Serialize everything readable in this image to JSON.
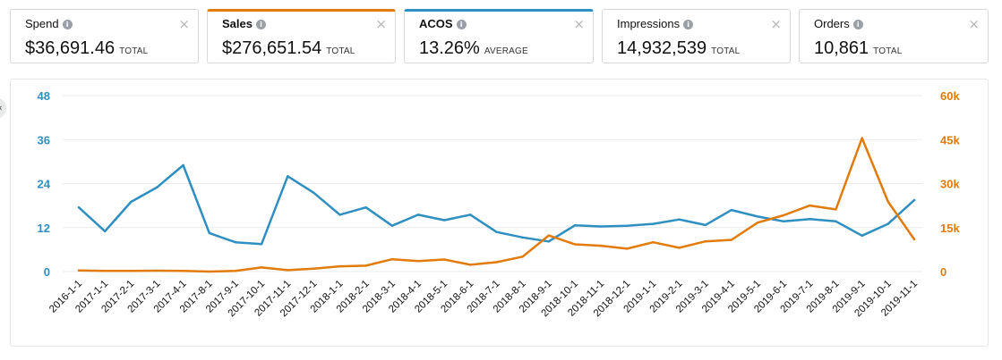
{
  "metrics": [
    {
      "label": "Spend",
      "value": "$36,691.46",
      "agg": "TOTAL",
      "selected": false
    },
    {
      "label": "Sales",
      "value": "$276,651.54",
      "agg": "TOTAL",
      "selected": true
    },
    {
      "label": "ACOS",
      "value": "13.26%",
      "agg": "AVERAGE",
      "selected": true
    },
    {
      "label": "Impressions",
      "value": "14,932,539",
      "agg": "TOTAL",
      "selected": false
    },
    {
      "label": "Orders",
      "value": "10,861",
      "agg": "TOTAL",
      "selected": false
    }
  ],
  "icons": {
    "info": "info-icon",
    "close": "close-icon",
    "collapse": "chevron-left-icon"
  },
  "colors": {
    "acos": "#2e8fc0",
    "sales": "#e07b0c",
    "grid": "#e9ecec",
    "border": "#d5d9d9"
  },
  "chart_data": {
    "type": "line",
    "x": [
      "2016-1-1",
      "2017-1-1",
      "2017-2-1",
      "2017-3-1",
      "2017-4-1",
      "2017-8-1",
      "2017-9-1",
      "2017-10-1",
      "2017-11-1",
      "2017-12-1",
      "2018-1-1",
      "2018-2-1",
      "2018-3-1",
      "2018-4-1",
      "2018-5-1",
      "2018-6-1",
      "2018-7-1",
      "2018-8-1",
      "2018-9-1",
      "2018-10-1",
      "2018-11-1",
      "2018-12-1",
      "2019-1-1",
      "2019-2-1",
      "2019-3-1",
      "2019-4-1",
      "2019-5-1",
      "2019-6-1",
      "2019-7-1",
      "2019-8-1",
      "2019-9-1",
      "2019-10-1",
      "2019-11-1"
    ],
    "series": [
      {
        "name": "ACOS",
        "axis": "left",
        "color": "#2e8fc0",
        "values": [
          17.5,
          11,
          19,
          23,
          29,
          10.5,
          8,
          7.5,
          26,
          21.5,
          15.5,
          17.5,
          12.5,
          15.5,
          14,
          15.5,
          10.8,
          9.3,
          8.2,
          12.6,
          12.3,
          12.5,
          13,
          14.2,
          12.7,
          16.8,
          15,
          13.7,
          14.3,
          13.7,
          9.8,
          13,
          19.5
        ]
      },
      {
        "name": "Sales",
        "axis": "right",
        "color": "#e07b0c",
        "values": [
          400,
          200,
          200,
          300,
          200,
          0,
          200,
          1400,
          500,
          1000,
          1800,
          2000,
          4200,
          3600,
          4100,
          2300,
          3200,
          5100,
          12300,
          9300,
          8800,
          7800,
          10000,
          8100,
          10300,
          10800,
          16700,
          19200,
          22500,
          21200,
          45500,
          23800,
          11000
        ]
      }
    ],
    "yleft": {
      "ticks": [
        "0",
        "12",
        "24",
        "36",
        "48"
      ],
      "lim": [
        0,
        48
      ]
    },
    "yright": {
      "ticks": [
        "0",
        "15k",
        "30k",
        "45k",
        "60k"
      ],
      "lim": [
        0,
        60000
      ]
    },
    "grid": true
  }
}
